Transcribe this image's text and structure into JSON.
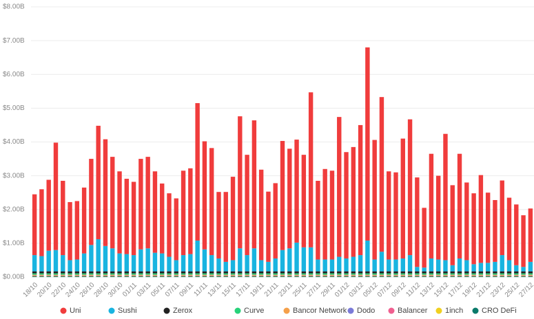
{
  "chart_data": {
    "type": "stacked_bar",
    "categories": [
      "18/10",
      null,
      "20/10",
      null,
      "22/10",
      null,
      "24/10",
      null,
      "26/10",
      null,
      "28/10",
      null,
      "30/10",
      null,
      "01/11",
      null,
      "03/11",
      null,
      "05/11",
      null,
      "07/11",
      null,
      "09/11",
      null,
      "11/11",
      null,
      "13/11",
      null,
      "15/11",
      null,
      "17/11",
      null,
      "19/11",
      null,
      "21/11",
      null,
      "23/11",
      null,
      "25/11",
      null,
      "27/11",
      null,
      "29/11",
      null,
      "01/12",
      null,
      "03/12",
      null,
      "05/12",
      null,
      "07/12",
      null,
      "09/12",
      null,
      "11/12",
      null,
      "13/12",
      null,
      "15/12",
      null,
      "17/12",
      null,
      "19/12",
      null,
      "21/12",
      null,
      "23/12",
      null,
      "25/12",
      null,
      "27/12"
    ],
    "series": [
      {
        "name": "Uni",
        "color": "#f03c3c",
        "values": [
          1.8,
          1.98,
          2.1,
          3.18,
          2.2,
          1.72,
          1.73,
          1.95,
          2.55,
          3.36,
          3.16,
          2.71,
          2.43,
          2.23,
          2.17,
          2.68,
          2.71,
          2.41,
          2.07,
          1.88,
          1.83,
          2.5,
          2.54,
          4.07,
          3.2,
          3.17,
          1.97,
          2.07,
          2.47,
          3.91,
          2.97,
          3.79,
          2.68,
          2.08,
          2.23,
          3.23,
          2.95,
          3.05,
          2.74,
          4.59,
          2.33,
          2.68,
          2.63,
          4.14,
          3.15,
          3.25,
          3.85,
          5.72,
          3.54,
          4.58,
          2.61,
          2.58,
          3.55,
          4.02,
          2.65,
          1.77,
          3.1,
          2.48,
          3.74,
          2.37,
          3.1,
          2.3,
          2.1,
          2.6,
          2.08,
          1.83,
          2.21,
          1.85,
          1.8,
          1.53,
          1.58
        ]
      },
      {
        "name": "Sushi",
        "color": "#19b4e0",
        "values": [
          0.48,
          0.45,
          0.61,
          0.63,
          0.48,
          0.33,
          0.35,
          0.53,
          0.78,
          0.95,
          0.75,
          0.68,
          0.53,
          0.51,
          0.48,
          0.65,
          0.68,
          0.55,
          0.53,
          0.43,
          0.33,
          0.48,
          0.51,
          0.91,
          0.65,
          0.48,
          0.38,
          0.28,
          0.33,
          0.68,
          0.48,
          0.68,
          0.33,
          0.28,
          0.38,
          0.63,
          0.68,
          0.85,
          0.71,
          0.71,
          0.35,
          0.35,
          0.35,
          0.43,
          0.38,
          0.43,
          0.48,
          0.91,
          0.35,
          0.58,
          0.35,
          0.35,
          0.38,
          0.48,
          0.13,
          0.11,
          0.38,
          0.35,
          0.33,
          0.18,
          0.38,
          0.33,
          0.21,
          0.25,
          0.25,
          0.28,
          0.48,
          0.33,
          0.18,
          0.13,
          0.28
        ]
      },
      {
        "name": "Zerox",
        "color": "#222222",
        "values": [
          0.06,
          0.06,
          0.06,
          0.06,
          0.06,
          0.06,
          0.06,
          0.06,
          0.06,
          0.06,
          0.06,
          0.06,
          0.06,
          0.06,
          0.06,
          0.06,
          0.06,
          0.06,
          0.06,
          0.06,
          0.06,
          0.06,
          0.06,
          0.06,
          0.06,
          0.06,
          0.06,
          0.06,
          0.06,
          0.06,
          0.06,
          0.06,
          0.06,
          0.06,
          0.06,
          0.06,
          0.06,
          0.06,
          0.06,
          0.06,
          0.06,
          0.06,
          0.06,
          0.06,
          0.06,
          0.06,
          0.06,
          0.06,
          0.06,
          0.06,
          0.06,
          0.06,
          0.06,
          0.06,
          0.06,
          0.06,
          0.06,
          0.06,
          0.06,
          0.06,
          0.06,
          0.06,
          0.06,
          0.06,
          0.06,
          0.06,
          0.06,
          0.06,
          0.06,
          0.06,
          0.06
        ]
      },
      {
        "name": "Curve",
        "color": "#27d27a",
        "values": [
          0.04,
          0.04,
          0.04,
          0.04,
          0.04,
          0.04,
          0.04,
          0.04,
          0.04,
          0.04,
          0.04,
          0.04,
          0.04,
          0.04,
          0.04,
          0.04,
          0.04,
          0.04,
          0.04,
          0.04,
          0.04,
          0.04,
          0.04,
          0.04,
          0.04,
          0.04,
          0.04,
          0.04,
          0.04,
          0.04,
          0.04,
          0.04,
          0.04,
          0.04,
          0.04,
          0.04,
          0.04,
          0.04,
          0.04,
          0.04,
          0.04,
          0.04,
          0.04,
          0.04,
          0.04,
          0.04,
          0.04,
          0.04,
          0.04,
          0.04,
          0.04,
          0.04,
          0.04,
          0.04,
          0.04,
          0.04,
          0.04,
          0.04,
          0.04,
          0.04,
          0.04,
          0.04,
          0.04,
          0.04,
          0.04,
          0.04,
          0.04,
          0.04,
          0.04,
          0.04,
          0.04
        ]
      },
      {
        "name": "Bancor Network",
        "color": "#f5a04a",
        "values": [
          0.02,
          0.02,
          0.02,
          0.02,
          0.02,
          0.02,
          0.02,
          0.02,
          0.02,
          0.02,
          0.02,
          0.02,
          0.02,
          0.02,
          0.02,
          0.02,
          0.02,
          0.02,
          0.02,
          0.02,
          0.02,
          0.02,
          0.02,
          0.02,
          0.02,
          0.02,
          0.02,
          0.02,
          0.02,
          0.02,
          0.02,
          0.02,
          0.02,
          0.02,
          0.02,
          0.02,
          0.02,
          0.02,
          0.02,
          0.02,
          0.02,
          0.02,
          0.02,
          0.02,
          0.02,
          0.02,
          0.02,
          0.02,
          0.02,
          0.02,
          0.02,
          0.02,
          0.02,
          0.02,
          0.02,
          0.02,
          0.02,
          0.02,
          0.02,
          0.02,
          0.02,
          0.02,
          0.02,
          0.02,
          0.02,
          0.02,
          0.02,
          0.02,
          0.02,
          0.02,
          0.02
        ]
      },
      {
        "name": "Dodo",
        "color": "#7b7bd8",
        "values": [
          0.01,
          0.01,
          0.01,
          0.01,
          0.01,
          0.01,
          0.01,
          0.01,
          0.01,
          0.01,
          0.01,
          0.01,
          0.01,
          0.01,
          0.01,
          0.01,
          0.01,
          0.01,
          0.01,
          0.01,
          0.01,
          0.01,
          0.01,
          0.01,
          0.01,
          0.01,
          0.01,
          0.01,
          0.01,
          0.01,
          0.01,
          0.01,
          0.01,
          0.01,
          0.01,
          0.01,
          0.01,
          0.01,
          0.01,
          0.01,
          0.01,
          0.01,
          0.01,
          0.01,
          0.01,
          0.01,
          0.01,
          0.01,
          0.01,
          0.01,
          0.01,
          0.01,
          0.01,
          0.01,
          0.01,
          0.01,
          0.01,
          0.01,
          0.01,
          0.01,
          0.01,
          0.01,
          0.01,
          0.01,
          0.01,
          0.01,
          0.01,
          0.01,
          0.01,
          0.01,
          0.01
        ]
      },
      {
        "name": "Balancer",
        "color": "#f06090",
        "values": [
          0.01,
          0.01,
          0.01,
          0.01,
          0.01,
          0.01,
          0.01,
          0.01,
          0.01,
          0.01,
          0.01,
          0.01,
          0.01,
          0.01,
          0.01,
          0.01,
          0.01,
          0.01,
          0.01,
          0.01,
          0.01,
          0.01,
          0.01,
          0.01,
          0.01,
          0.01,
          0.01,
          0.01,
          0.01,
          0.01,
          0.01,
          0.01,
          0.01,
          0.01,
          0.01,
          0.01,
          0.01,
          0.01,
          0.01,
          0.01,
          0.01,
          0.01,
          0.01,
          0.01,
          0.01,
          0.01,
          0.01,
          0.01,
          0.01,
          0.01,
          0.01,
          0.01,
          0.01,
          0.01,
          0.01,
          0.01,
          0.01,
          0.01,
          0.01,
          0.01,
          0.01,
          0.01,
          0.01,
          0.01,
          0.01,
          0.01,
          0.01,
          0.01,
          0.01,
          0.01,
          0.01
        ]
      },
      {
        "name": "1inch",
        "color": "#f0d020",
        "values": [
          0.01,
          0.01,
          0.01,
          0.01,
          0.01,
          0.01,
          0.01,
          0.01,
          0.01,
          0.01,
          0.01,
          0.01,
          0.01,
          0.01,
          0.01,
          0.01,
          0.01,
          0.01,
          0.01,
          0.01,
          0.01,
          0.01,
          0.01,
          0.01,
          0.01,
          0.01,
          0.01,
          0.01,
          0.01,
          0.01,
          0.01,
          0.01,
          0.01,
          0.01,
          0.01,
          0.01,
          0.01,
          0.01,
          0.01,
          0.01,
          0.01,
          0.01,
          0.01,
          0.01,
          0.01,
          0.01,
          0.01,
          0.01,
          0.01,
          0.01,
          0.01,
          0.01,
          0.01,
          0.01,
          0.01,
          0.01,
          0.01,
          0.01,
          0.01,
          0.01,
          0.01,
          0.01,
          0.01,
          0.01,
          0.01,
          0.01,
          0.01,
          0.01,
          0.01,
          0.01,
          0.01
        ]
      },
      {
        "name": "CRO DeFi",
        "color": "#0a7a6a",
        "values": [
          0.02,
          0.02,
          0.02,
          0.02,
          0.02,
          0.02,
          0.02,
          0.02,
          0.02,
          0.02,
          0.02,
          0.02,
          0.02,
          0.02,
          0.02,
          0.02,
          0.02,
          0.02,
          0.02,
          0.02,
          0.02,
          0.02,
          0.02,
          0.02,
          0.02,
          0.02,
          0.02,
          0.02,
          0.02,
          0.02,
          0.02,
          0.02,
          0.02,
          0.02,
          0.02,
          0.02,
          0.02,
          0.02,
          0.02,
          0.02,
          0.02,
          0.02,
          0.02,
          0.02,
          0.02,
          0.02,
          0.02,
          0.02,
          0.02,
          0.02,
          0.02,
          0.02,
          0.02,
          0.02,
          0.02,
          0.02,
          0.02,
          0.02,
          0.02,
          0.02,
          0.02,
          0.02,
          0.02,
          0.02,
          0.02,
          0.02,
          0.02,
          0.02,
          0.02,
          0.02,
          0.02
        ]
      }
    ],
    "ylim": [
      0,
      8
    ],
    "yticks": [
      {
        "value": 0,
        "label": "$0.00B"
      },
      {
        "value": 1,
        "label": "$1.00B"
      },
      {
        "value": 2,
        "label": "$2.00B"
      },
      {
        "value": 3,
        "label": "$3.00B"
      },
      {
        "value": 4,
        "label": "$4.00B"
      },
      {
        "value": 5,
        "label": "$5.00B"
      },
      {
        "value": 6,
        "label": "$6.00B"
      },
      {
        "value": 7,
        "label": "$7.00B"
      },
      {
        "value": 8,
        "label": "$8.00B"
      }
    ],
    "grid": true
  }
}
